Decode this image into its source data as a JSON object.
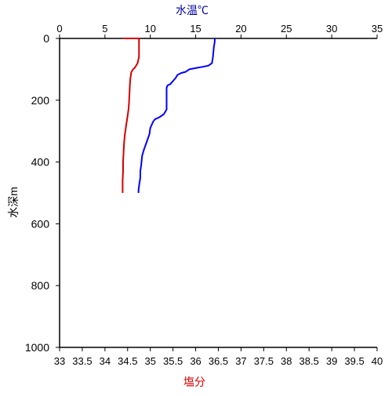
{
  "chart_data": {
    "type": "line",
    "title": "",
    "x_top": {
      "label": "水温℃",
      "ticks": [
        0,
        5,
        10,
        15,
        20,
        25,
        30,
        35
      ],
      "range": [
        0,
        35
      ]
    },
    "x_bottom": {
      "label": "塩分",
      "ticks": [
        33,
        33.5,
        34,
        34.5,
        35,
        35.5,
        36,
        36.5,
        37,
        37.5,
        38,
        38.5,
        39,
        39.5,
        40
      ],
      "range": [
        33,
        40
      ]
    },
    "y": {
      "label": "水深m",
      "ticks": [
        0,
        200,
        400,
        600,
        800,
        1000
      ],
      "range": [
        0,
        1000
      ],
      "inverted": true
    },
    "grid": false,
    "colors": {
      "axis": "#000000",
      "temperature": "#0000ff",
      "salinity": "#d40000",
      "top_label": "#0000a0",
      "bottom_label": "#d40000"
    },
    "series": [
      {
        "name": "水温℃",
        "axis": "top",
        "color": "#0000ff",
        "points": [
          [
            17.1,
            0
          ],
          [
            17.1,
            10
          ],
          [
            17.0,
            30
          ],
          [
            16.9,
            60
          ],
          [
            16.8,
            80
          ],
          [
            16.4,
            88
          ],
          [
            15.8,
            92
          ],
          [
            15.2,
            95
          ],
          [
            14.3,
            100
          ],
          [
            13.9,
            108
          ],
          [
            13.4,
            112
          ],
          [
            13.0,
            118
          ],
          [
            12.8,
            128
          ],
          [
            12.5,
            138
          ],
          [
            12.2,
            148
          ],
          [
            11.9,
            152
          ],
          [
            11.8,
            160
          ],
          [
            11.8,
            200
          ],
          [
            11.8,
            230
          ],
          [
            11.5,
            245
          ],
          [
            11.0,
            255
          ],
          [
            10.5,
            262
          ],
          [
            10.3,
            270
          ],
          [
            10.0,
            290
          ],
          [
            9.9,
            310
          ],
          [
            9.6,
            335
          ],
          [
            9.3,
            360
          ],
          [
            9.1,
            380
          ],
          [
            9.0,
            410
          ],
          [
            8.9,
            430
          ],
          [
            8.9,
            450
          ],
          [
            8.8,
            470
          ],
          [
            8.7,
            490
          ],
          [
            8.7,
            500
          ]
        ]
      },
      {
        "name": "塩分",
        "axis": "bottom",
        "color": "#d40000",
        "points": [
          [
            34.4,
            0
          ],
          [
            34.75,
            0
          ],
          [
            34.75,
            20
          ],
          [
            34.75,
            40
          ],
          [
            34.75,
            60
          ],
          [
            34.72,
            80
          ],
          [
            34.66,
            95
          ],
          [
            34.62,
            100
          ],
          [
            34.58,
            110
          ],
          [
            34.56,
            130
          ],
          [
            34.55,
            150
          ],
          [
            34.54,
            180
          ],
          [
            34.53,
            210
          ],
          [
            34.52,
            230
          ],
          [
            34.5,
            250
          ],
          [
            34.47,
            280
          ],
          [
            34.44,
            310
          ],
          [
            34.42,
            340
          ],
          [
            34.41,
            370
          ],
          [
            34.4,
            400
          ],
          [
            34.4,
            430
          ],
          [
            34.39,
            460
          ],
          [
            34.39,
            500
          ]
        ]
      }
    ]
  }
}
